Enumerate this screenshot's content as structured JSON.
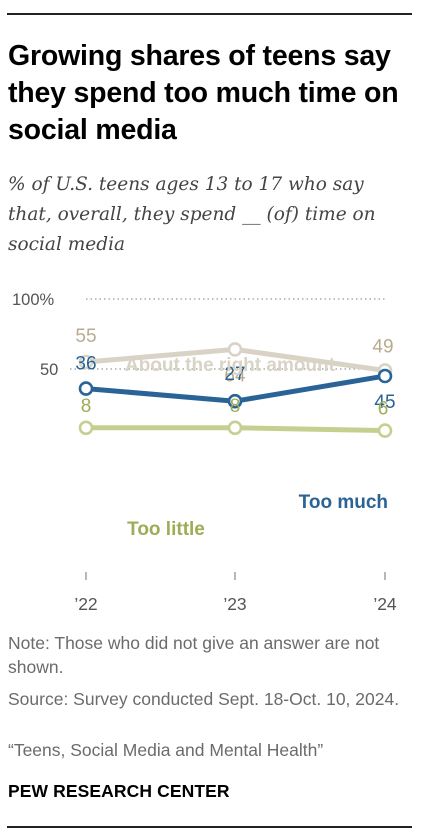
{
  "title": "Growing shares of teens say they spend too much time on social media",
  "subtitle": "% of U.S. teens ages 13 to 17 who say that, overall, they spend __ (of) time on social media",
  "note": "Note: Those who did not give an answer are not shown.",
  "source": "Source: Survey conducted Sept. 18-Oct. 10, 2024.",
  "report": "“Teens, Social Media and Mental Health”",
  "brand": "PEW RESEARCH CENTER",
  "colors": {
    "about_right": "#d9d3c5",
    "about_right_text": "#b9ab8e",
    "too_much": "#2a6496",
    "too_little": "#c5d090",
    "too_little_text": "#9fac56",
    "grid": "#999999",
    "axis_text": "#555555"
  },
  "chart_data": {
    "type": "line",
    "categories": [
      "’22",
      "’23",
      "’24"
    ],
    "ylim": [
      0,
      100
    ],
    "yticks": [
      {
        "value": 100,
        "label": "100%"
      },
      {
        "value": 50,
        "label": "50"
      }
    ],
    "grid": "dotted lines at 50 and 100",
    "series": [
      {
        "key": "about_right",
        "name": "About the right amount",
        "values": [
          55,
          64,
          49
        ]
      },
      {
        "key": "too_much",
        "name": "Too much",
        "values": [
          36,
          27,
          45
        ]
      },
      {
        "key": "too_little",
        "name": "Too little",
        "values": [
          8,
          8,
          6
        ]
      }
    ]
  }
}
